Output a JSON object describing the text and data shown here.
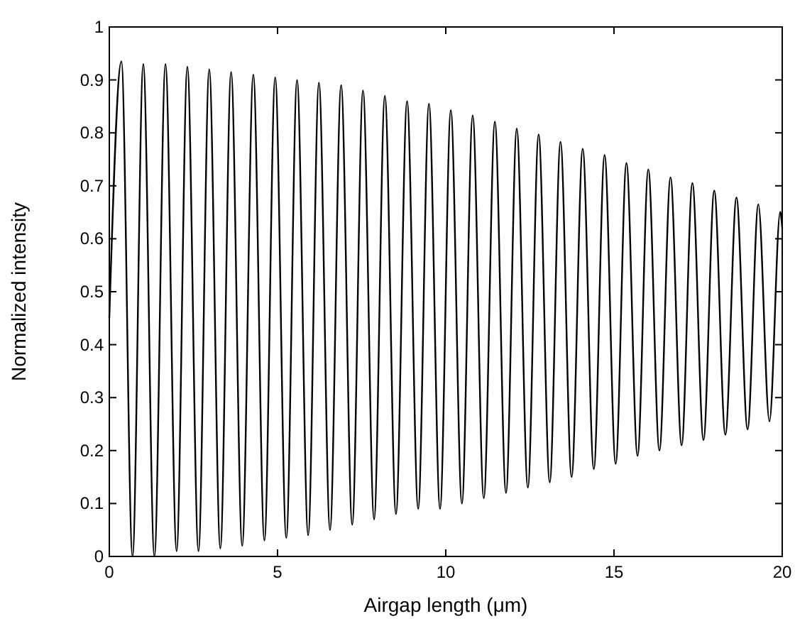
{
  "chart_data": {
    "type": "line",
    "xlabel": "Airgap  length (μm)",
    "ylabel": "Normalized intensity",
    "xlim": [
      0,
      20
    ],
    "ylim": [
      0,
      1
    ],
    "xticks": [
      0,
      5,
      10,
      15,
      20
    ],
    "yticks": [
      0,
      0.1,
      0.2,
      0.3,
      0.4,
      0.5,
      0.6,
      0.7,
      0.8,
      0.9,
      1
    ],
    "grid": false,
    "marker": "none",
    "line_style": "solid",
    "series": [
      {
        "color": "#000000",
        "x": [
          0,
          0.36,
          0.69,
          1.01,
          1.34,
          1.67,
          2.0,
          2.32,
          2.65,
          2.97,
          3.3,
          3.62,
          3.95,
          4.28,
          4.61,
          4.93,
          5.26,
          5.58,
          5.91,
          6.23,
          6.56,
          6.89,
          7.22,
          7.54,
          7.87,
          8.19,
          8.52,
          8.85,
          9.18,
          9.5,
          9.83,
          10.15,
          10.48,
          10.8,
          11.13,
          11.46,
          11.79,
          12.11,
          12.44,
          12.76,
          13.09,
          13.41,
          13.74,
          14.07,
          14.4,
          14.72,
          15.05,
          15.37,
          15.7,
          16.02,
          16.35,
          16.68,
          17.01,
          17.33,
          17.66,
          17.98,
          18.31,
          18.64,
          18.97,
          19.29,
          19.62,
          19.94,
          20
        ],
        "values": [
          0.45,
          0.935,
          0,
          0.93,
          0,
          0.93,
          0.01,
          0.925,
          0.01,
          0.92,
          0.015,
          0.915,
          0.02,
          0.91,
          0.03,
          0.905,
          0.035,
          0.9,
          0.04,
          0.895,
          0.05,
          0.89,
          0.06,
          0.88,
          0.07,
          0.87,
          0.08,
          0.86,
          0.09,
          0.855,
          0.09,
          0.843,
          0.1,
          0.833,
          0.11,
          0.821,
          0.12,
          0.808,
          0.13,
          0.797,
          0.14,
          0.783,
          0.15,
          0.77,
          0.165,
          0.758,
          0.175,
          0.743,
          0.19,
          0.731,
          0.2,
          0.716,
          0.21,
          0.705,
          0.22,
          0.691,
          0.23,
          0.678,
          0.24,
          0.665,
          0.255,
          0.651,
          0.62
        ]
      }
    ]
  }
}
